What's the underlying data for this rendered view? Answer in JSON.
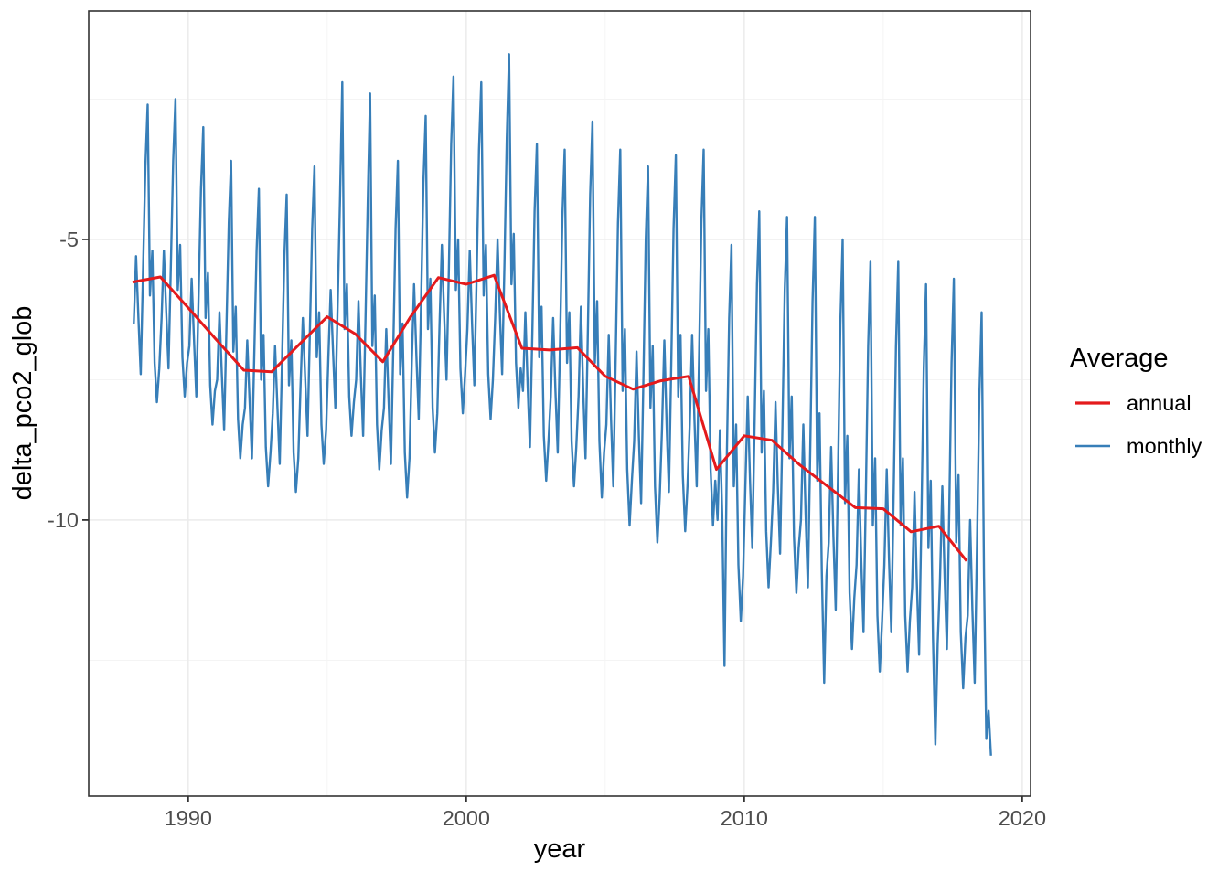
{
  "figure": {
    "background": "#FFFFFF",
    "panel": {
      "background": "#FFFFFF",
      "border_color": "#333333",
      "grid_major_color": "#EBEBEB",
      "grid_minor_color": "#F3F3F3",
      "tick_color": "#333333",
      "tick_label_color": "#4D4D4D"
    },
    "x_axis": {
      "title": "year",
      "tick_labels": [
        "1990",
        "2000",
        "2010",
        "2020"
      ]
    },
    "y_axis": {
      "title": "delta_pco2_glob",
      "tick_labels": [
        "-5",
        "-10"
      ]
    },
    "legend": {
      "title": "Average",
      "entries": [
        {
          "label": "annual",
          "color": "#E41A1C"
        },
        {
          "label": "monthly",
          "color": "#377EB8"
        }
      ]
    }
  },
  "chart_data": {
    "type": "line",
    "title": "",
    "xlabel": "year",
    "ylabel": "delta_pco2_glob",
    "xlim": [
      1986.42,
      2020.3
    ],
    "ylim": [
      -14.92,
      -0.93
    ],
    "grid": true,
    "legend_position": "right",
    "legend_title": "Average",
    "x_ticks": [
      {
        "value": 1990,
        "label": "1990"
      },
      {
        "value": 2000,
        "label": "2000"
      },
      {
        "value": 2010,
        "label": "2010"
      },
      {
        "value": 2020,
        "label": "2020"
      }
    ],
    "x_minor_ticks": [
      1995,
      2005,
      2015
    ],
    "y_ticks": [
      {
        "value": -5,
        "label": "-5"
      },
      {
        "value": -10,
        "label": "-10"
      }
    ],
    "y_minor_ticks": [
      -2.5,
      -7.5,
      -12.5
    ],
    "series": [
      {
        "name": "annual",
        "color": "#E41A1C",
        "x": [
          1988,
          1989,
          1990,
          1991,
          1992,
          1993,
          1994,
          1995,
          1996,
          1997,
          1998,
          1999,
          2000,
          2001,
          2002,
          2003,
          2004,
          2005,
          2006,
          2007,
          2008,
          2009,
          2010,
          2011,
          2012,
          2013,
          2014,
          2015,
          2016,
          2017,
          2018
        ],
        "y": [
          -5.76,
          -5.67,
          -6.22,
          -6.78,
          -7.33,
          -7.36,
          -6.87,
          -6.38,
          -6.68,
          -7.18,
          -6.38,
          -5.68,
          -5.8,
          -5.64,
          -6.94,
          -6.97,
          -6.93,
          -7.44,
          -7.67,
          -7.52,
          -7.44,
          -9.1,
          -8.5,
          -8.58,
          -9.02,
          -9.4,
          -9.78,
          -9.8,
          -10.21,
          -10.11,
          -10.73
        ]
      },
      {
        "name": "monthly",
        "color": "#377EB8",
        "start_year": 1988,
        "values_by_year": [
          [
            -6.5,
            -5.3,
            -6.4,
            -7.4,
            -5.6,
            -3.7,
            -2.6,
            -6.0,
            -5.2,
            -7.2,
            -7.9,
            -7.3
          ],
          [
            -6.4,
            -5.2,
            -6.3,
            -7.3,
            -5.5,
            -3.6,
            -2.5,
            -5.9,
            -5.1,
            -7.1,
            -7.8,
            -7.2
          ],
          [
            -6.9,
            -5.7,
            -6.8,
            -7.8,
            -6.0,
            -4.1,
            -3.0,
            -6.4,
            -5.6,
            -7.6,
            -8.3,
            -7.7
          ],
          [
            -7.5,
            -6.3,
            -7.4,
            -8.4,
            -6.6,
            -4.7,
            -3.6,
            -7.0,
            -6.2,
            -8.2,
            -8.9,
            -8.3
          ],
          [
            -8.0,
            -6.8,
            -7.9,
            -8.9,
            -7.1,
            -5.2,
            -4.1,
            -7.5,
            -6.7,
            -8.7,
            -9.4,
            -8.8
          ],
          [
            -8.1,
            -6.9,
            -8.0,
            -9.0,
            -7.2,
            -5.3,
            -4.2,
            -7.6,
            -6.8,
            -8.8,
            -9.5,
            -8.9
          ],
          [
            -7.6,
            -6.4,
            -7.5,
            -8.5,
            -6.7,
            -4.8,
            -3.7,
            -7.1,
            -6.3,
            -8.3,
            -9.0,
            -8.4
          ],
          [
            -7.1,
            -5.9,
            -7.0,
            -8.0,
            -6.2,
            -4.3,
            -2.2,
            -6.6,
            -5.8,
            -7.8,
            -8.5,
            -7.9
          ],
          [
            -7.5,
            -6.1,
            -7.4,
            -8.5,
            -6.5,
            -4.3,
            -2.4,
            -6.9,
            -6.0,
            -8.3,
            -9.1,
            -8.4
          ],
          [
            -8.0,
            -6.6,
            -7.9,
            -9.0,
            -7.0,
            -4.8,
            -3.6,
            -7.4,
            -6.5,
            -8.8,
            -9.6,
            -8.9
          ],
          [
            -7.2,
            -5.8,
            -7.1,
            -8.2,
            -6.2,
            -4.0,
            -2.8,
            -6.6,
            -5.7,
            -8.0,
            -8.8,
            -8.1
          ],
          [
            -6.5,
            -5.1,
            -6.4,
            -7.5,
            -5.5,
            -3.3,
            -2.1,
            -5.9,
            -5.0,
            -7.3,
            -8.1,
            -7.4
          ],
          [
            -6.6,
            -5.2,
            -6.5,
            -7.6,
            -5.6,
            -3.4,
            -2.2,
            -6.0,
            -5.1,
            -7.4,
            -8.2,
            -7.5
          ],
          [
            -6.4,
            -5.0,
            -6.3,
            -7.4,
            -5.4,
            -3.2,
            -1.7,
            -5.8,
            -4.9,
            -7.2,
            -8.0,
            -7.3
          ],
          [
            -7.7,
            -6.3,
            -7.6,
            -8.7,
            -6.7,
            -4.5,
            -3.3,
            -7.1,
            -6.2,
            -8.5,
            -9.3,
            -8.6
          ],
          [
            -7.8,
            -6.4,
            -7.7,
            -8.8,
            -6.8,
            -4.6,
            -3.4,
            -7.2,
            -6.3,
            -8.6,
            -9.4,
            -8.7
          ],
          [
            -7.8,
            -6.2,
            -7.7,
            -8.9,
            -6.6,
            -4.2,
            -2.9,
            -7.2,
            -6.1,
            -8.6,
            -9.6,
            -8.8
          ],
          [
            -8.3,
            -6.7,
            -8.2,
            -9.4,
            -7.1,
            -4.7,
            -3.4,
            -7.7,
            -6.6,
            -9.1,
            -10.1,
            -9.3
          ],
          [
            -8.6,
            -7.0,
            -8.5,
            -9.7,
            -7.4,
            -5.0,
            -3.7,
            -8.0,
            -6.9,
            -9.4,
            -10.4,
            -9.6
          ],
          [
            -8.4,
            -6.8,
            -8.3,
            -9.5,
            -7.2,
            -4.8,
            -3.5,
            -7.8,
            -6.7,
            -9.2,
            -10.2,
            -9.4
          ],
          [
            -8.3,
            -6.7,
            -8.2,
            -9.4,
            -7.1,
            -4.7,
            -3.4,
            -7.7,
            -6.6,
            -9.1,
            -10.1,
            -9.3
          ],
          [
            -10.0,
            -8.4,
            -9.9,
            -12.6,
            -8.8,
            -6.4,
            -5.1,
            -9.4,
            -8.3,
            -10.8,
            -11.8,
            -11.0
          ],
          [
            -9.4,
            -7.8,
            -9.3,
            -10.5,
            -8.2,
            -5.8,
            -4.5,
            -8.8,
            -7.7,
            -10.2,
            -11.2,
            -10.4
          ],
          [
            -9.5,
            -7.9,
            -9.4,
            -10.6,
            -8.3,
            -5.9,
            -4.6,
            -8.9,
            -7.8,
            -10.3,
            -11.3,
            -10.5
          ],
          [
            -10.0,
            -8.3,
            -9.9,
            -11.2,
            -8.7,
            -6.1,
            -4.6,
            -9.3,
            -8.1,
            -10.9,
            -12.9,
            -11.0
          ],
          [
            -10.4,
            -8.7,
            -10.3,
            -11.6,
            -9.1,
            -6.5,
            -5.0,
            -9.7,
            -8.5,
            -11.3,
            -12.3,
            -11.4
          ],
          [
            -10.8,
            -9.1,
            -10.7,
            -12.0,
            -9.5,
            -6.9,
            -5.4,
            -10.1,
            -8.9,
            -11.7,
            -12.7,
            -11.8
          ],
          [
            -10.8,
            -9.1,
            -10.7,
            -12.0,
            -9.5,
            -6.9,
            -5.4,
            -10.1,
            -8.9,
            -11.7,
            -12.7,
            -11.8
          ],
          [
            -11.2,
            -9.5,
            -11.1,
            -12.4,
            -9.9,
            -7.3,
            -5.8,
            -10.5,
            -9.3,
            -12.1,
            -14.0,
            -12.2
          ],
          [
            -11.1,
            -9.4,
            -11.0,
            -12.3,
            -9.8,
            -7.2,
            -5.7,
            -10.4,
            -9.2,
            -12.0,
            -13.0,
            -12.1
          ],
          [
            -11.7,
            -10.0,
            -11.6,
            -12.9,
            -10.4,
            -7.8,
            -6.3,
            -11.0,
            -13.9,
            -13.4,
            -14.2
          ]
        ]
      }
    ]
  }
}
